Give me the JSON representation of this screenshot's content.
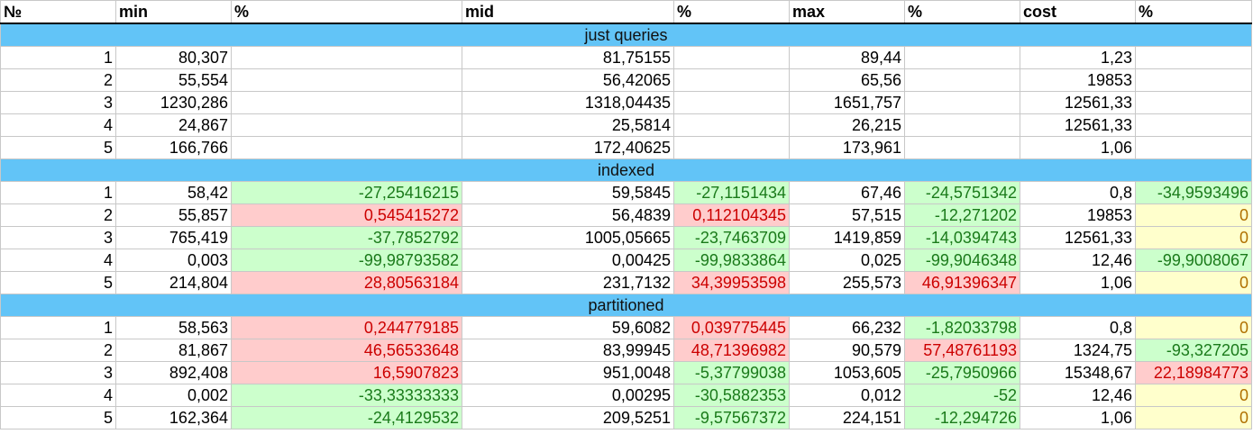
{
  "headers": [
    "№",
    "min",
    "%",
    "mid",
    "%",
    "max",
    "%",
    "cost",
    "%"
  ],
  "sections": [
    {
      "title": "just queries",
      "rows": [
        {
          "cells": [
            {
              "v": "1"
            },
            {
              "v": "80,307"
            },
            {
              "v": ""
            },
            {
              "v": "81,75155"
            },
            {
              "v": ""
            },
            {
              "v": "89,44"
            },
            {
              "v": ""
            },
            {
              "v": "1,23"
            },
            {
              "v": ""
            }
          ]
        },
        {
          "cells": [
            {
              "v": "2"
            },
            {
              "v": "55,554"
            },
            {
              "v": ""
            },
            {
              "v": "56,42065"
            },
            {
              "v": ""
            },
            {
              "v": "65,56"
            },
            {
              "v": ""
            },
            {
              "v": "19853"
            },
            {
              "v": ""
            }
          ]
        },
        {
          "cells": [
            {
              "v": "3"
            },
            {
              "v": "1230,286"
            },
            {
              "v": ""
            },
            {
              "v": "1318,04435"
            },
            {
              "v": ""
            },
            {
              "v": "1651,757"
            },
            {
              "v": ""
            },
            {
              "v": "12561,33"
            },
            {
              "v": ""
            }
          ]
        },
        {
          "cells": [
            {
              "v": "4"
            },
            {
              "v": "24,867"
            },
            {
              "v": ""
            },
            {
              "v": "25,5814"
            },
            {
              "v": ""
            },
            {
              "v": "26,215"
            },
            {
              "v": ""
            },
            {
              "v": "12561,33"
            },
            {
              "v": ""
            }
          ]
        },
        {
          "cells": [
            {
              "v": "5"
            },
            {
              "v": "166,766"
            },
            {
              "v": ""
            },
            {
              "v": "172,40625"
            },
            {
              "v": ""
            },
            {
              "v": "173,961"
            },
            {
              "v": ""
            },
            {
              "v": "1,06"
            },
            {
              "v": ""
            }
          ]
        }
      ]
    },
    {
      "title": "indexed",
      "rows": [
        {
          "cells": [
            {
              "v": "1"
            },
            {
              "v": "58,42"
            },
            {
              "v": "-27,25416215",
              "c": "g"
            },
            {
              "v": "59,5845"
            },
            {
              "v": "-27,1151434",
              "c": "g"
            },
            {
              "v": "67,46"
            },
            {
              "v": "-24,5751342",
              "c": "g"
            },
            {
              "v": "0,8"
            },
            {
              "v": "-34,9593496",
              "c": "g"
            }
          ]
        },
        {
          "cells": [
            {
              "v": "2"
            },
            {
              "v": "55,857"
            },
            {
              "v": "0,545415272",
              "c": "r"
            },
            {
              "v": "56,4839"
            },
            {
              "v": "0,112104345",
              "c": "r"
            },
            {
              "v": "57,515"
            },
            {
              "v": "-12,271202",
              "c": "g"
            },
            {
              "v": "19853"
            },
            {
              "v": "0",
              "c": "y"
            }
          ]
        },
        {
          "cells": [
            {
              "v": "3"
            },
            {
              "v": "765,419"
            },
            {
              "v": "-37,7852792",
              "c": "g"
            },
            {
              "v": "1005,05665"
            },
            {
              "v": "-23,7463709",
              "c": "g"
            },
            {
              "v": "1419,859"
            },
            {
              "v": "-14,0394743",
              "c": "g"
            },
            {
              "v": "12561,33"
            },
            {
              "v": "0",
              "c": "y"
            }
          ]
        },
        {
          "cells": [
            {
              "v": "4"
            },
            {
              "v": "0,003"
            },
            {
              "v": "-99,98793582",
              "c": "g"
            },
            {
              "v": "0,00425"
            },
            {
              "v": "-99,9833864",
              "c": "g"
            },
            {
              "v": "0,025"
            },
            {
              "v": "-99,9046348",
              "c": "g"
            },
            {
              "v": "12,46"
            },
            {
              "v": "-99,9008067",
              "c": "g"
            }
          ]
        },
        {
          "cells": [
            {
              "v": "5"
            },
            {
              "v": "214,804"
            },
            {
              "v": "28,80563184",
              "c": "r"
            },
            {
              "v": "231,7132"
            },
            {
              "v": "34,39953598",
              "c": "r"
            },
            {
              "v": "255,573"
            },
            {
              "v": "46,91396347",
              "c": "r"
            },
            {
              "v": "1,06"
            },
            {
              "v": "0",
              "c": "y"
            }
          ]
        }
      ]
    },
    {
      "title": "partitioned",
      "rows": [
        {
          "cells": [
            {
              "v": "1"
            },
            {
              "v": "58,563"
            },
            {
              "v": "0,244779185",
              "c": "r"
            },
            {
              "v": "59,6082"
            },
            {
              "v": "0,039775445",
              "c": "r"
            },
            {
              "v": "66,232"
            },
            {
              "v": "-1,82033798",
              "c": "g"
            },
            {
              "v": "0,8"
            },
            {
              "v": "0",
              "c": "y"
            }
          ]
        },
        {
          "cells": [
            {
              "v": "2"
            },
            {
              "v": "81,867"
            },
            {
              "v": "46,56533648",
              "c": "r"
            },
            {
              "v": "83,99945"
            },
            {
              "v": "48,71396982",
              "c": "r"
            },
            {
              "v": "90,579"
            },
            {
              "v": "57,48761193",
              "c": "r"
            },
            {
              "v": "1324,75"
            },
            {
              "v": "-93,327205",
              "c": "g"
            }
          ]
        },
        {
          "cells": [
            {
              "v": "3"
            },
            {
              "v": "892,408"
            },
            {
              "v": "16,5907823",
              "c": "r"
            },
            {
              "v": "951,0048"
            },
            {
              "v": "-5,37799038",
              "c": "g"
            },
            {
              "v": "1053,605"
            },
            {
              "v": "-25,7950966",
              "c": "g"
            },
            {
              "v": "15348,67"
            },
            {
              "v": "22,18984773",
              "c": "r"
            }
          ]
        },
        {
          "cells": [
            {
              "v": "4"
            },
            {
              "v": "0,002"
            },
            {
              "v": "-33,33333333",
              "c": "g"
            },
            {
              "v": "0,00295"
            },
            {
              "v": "-30,5882353",
              "c": "g"
            },
            {
              "v": "0,012"
            },
            {
              "v": "-52",
              "c": "g"
            },
            {
              "v": "12,46"
            },
            {
              "v": "0",
              "c": "y"
            }
          ]
        },
        {
          "cells": [
            {
              "v": "5"
            },
            {
              "v": "162,364"
            },
            {
              "v": "-24,4129532",
              "c": "g"
            },
            {
              "v": "209,5251"
            },
            {
              "v": "-9,57567372",
              "c": "g"
            },
            {
              "v": "224,151"
            },
            {
              "v": "-12,294726",
              "c": "g"
            },
            {
              "v": "1,06"
            },
            {
              "v": "0",
              "c": "y"
            }
          ]
        }
      ]
    }
  ]
}
